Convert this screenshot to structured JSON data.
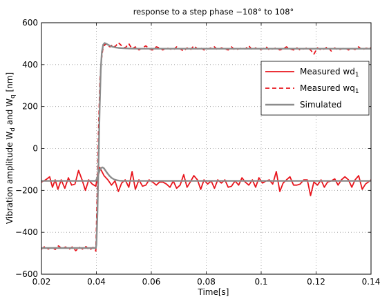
{
  "chart_data": {
    "type": "line",
    "title": "response to a step phase −108° to 108°",
    "xlabel": "Time[s]",
    "ylabel_parts": [
      "Vibration amplitude W",
      "d",
      " and W",
      "q",
      " [nm]"
    ],
    "xlim": [
      0.02,
      0.14
    ],
    "ylim": [
      -600,
      600
    ],
    "x_ticks": [
      0.02,
      0.04,
      0.06,
      0.08,
      0.1,
      0.12,
      0.14
    ],
    "x_tick_labels": [
      "0.02",
      "0.04",
      "0.06",
      "0.08",
      "0.1",
      "0.12",
      "0.14"
    ],
    "y_ticks": [
      -600,
      -400,
      -200,
      0,
      200,
      400,
      600
    ],
    "y_tick_labels": [
      "−600",
      "−400",
      "−200",
      "0",
      "200",
      "400",
      "600"
    ],
    "grid": true,
    "legend_position": "right",
    "series": [
      {
        "name_main": "Measured wd",
        "name_sub": "1",
        "color": "#e8141c",
        "style": "solid",
        "x": [
          0.02,
          0.0215,
          0.023,
          0.024,
          0.025,
          0.026,
          0.0272,
          0.0285,
          0.0298,
          0.031,
          0.0322,
          0.0335,
          0.0348,
          0.036,
          0.0372,
          0.0385,
          0.0398,
          0.0405,
          0.0412,
          0.0418,
          0.0428,
          0.0442,
          0.0455,
          0.0468,
          0.048,
          0.0492,
          0.0505,
          0.0518,
          0.053,
          0.0542,
          0.0555,
          0.0568,
          0.058,
          0.0592,
          0.0605,
          0.0618,
          0.063,
          0.0642,
          0.0655,
          0.0668,
          0.068,
          0.0692,
          0.0705,
          0.0718,
          0.073,
          0.0742,
          0.0755,
          0.0768,
          0.078,
          0.0792,
          0.0805,
          0.0818,
          0.083,
          0.0842,
          0.0855,
          0.0868,
          0.088,
          0.0892,
          0.0905,
          0.0918,
          0.093,
          0.0942,
          0.0955,
          0.0968,
          0.098,
          0.0992,
          0.1005,
          0.1018,
          0.103,
          0.1042,
          0.1055,
          0.1068,
          0.108,
          0.1092,
          0.1105,
          0.1118,
          0.113,
          0.1142,
          0.1155,
          0.1168,
          0.118,
          0.1192,
          0.1205,
          0.1218,
          0.123,
          0.1242,
          0.1255,
          0.1268,
          0.128,
          0.1292,
          0.1305,
          0.1318,
          0.133,
          0.1342,
          0.1355,
          0.1368,
          0.138,
          0.14
        ],
        "y": [
          -160,
          -150,
          -135,
          -185,
          -150,
          -195,
          -150,
          -190,
          -140,
          -175,
          -170,
          -105,
          -150,
          -200,
          -150,
          -170,
          -180,
          -120,
          -90,
          -105,
          -130,
          -150,
          -175,
          -155,
          -205,
          -165,
          -150,
          -185,
          -110,
          -195,
          -150,
          -180,
          -175,
          -150,
          -160,
          -175,
          -160,
          -160,
          -170,
          -185,
          -155,
          -190,
          -175,
          -125,
          -185,
          -160,
          -130,
          -150,
          -195,
          -150,
          -170,
          -155,
          -190,
          -150,
          -165,
          -150,
          -185,
          -180,
          -155,
          -175,
          -140,
          -160,
          -175,
          -150,
          -185,
          -140,
          -165,
          -155,
          -150,
          -170,
          -110,
          -205,
          -165,
          -150,
          -135,
          -175,
          -175,
          -170,
          -150,
          -150,
          -225,
          -160,
          -175,
          -150,
          -185,
          -160,
          -155,
          -145,
          -175,
          -150,
          -135,
          -150,
          -185,
          -150,
          -130,
          -195,
          -170,
          -150
        ]
      },
      {
        "name_main": "Measured wq",
        "name_sub": "1",
        "color": "#e8141c",
        "style": "dashed",
        "x": [
          0.02,
          0.0212,
          0.0225,
          0.0238,
          0.025,
          0.0262,
          0.0275,
          0.0288,
          0.03,
          0.0312,
          0.0325,
          0.0338,
          0.035,
          0.0362,
          0.0375,
          0.0388,
          0.0398,
          0.0403,
          0.0408,
          0.0413,
          0.0418,
          0.0423,
          0.0428,
          0.0435,
          0.0442,
          0.045,
          0.0458,
          0.0468,
          0.048,
          0.0492,
          0.0505,
          0.0518,
          0.053,
          0.0542,
          0.0555,
          0.0568,
          0.058,
          0.0592,
          0.0605,
          0.0618,
          0.063,
          0.0642,
          0.0655,
          0.0668,
          0.068,
          0.0692,
          0.0705,
          0.0718,
          0.073,
          0.0742,
          0.0755,
          0.0768,
          0.078,
          0.0792,
          0.0805,
          0.0818,
          0.083,
          0.0842,
          0.0855,
          0.0868,
          0.088,
          0.0892,
          0.0905,
          0.0918,
          0.093,
          0.0942,
          0.0955,
          0.0968,
          0.098,
          0.0992,
          0.1005,
          0.1018,
          0.103,
          0.1042,
          0.1055,
          0.1068,
          0.108,
          0.1092,
          0.1105,
          0.1118,
          0.113,
          0.1142,
          0.1155,
          0.1168,
          0.118,
          0.1192,
          0.1205,
          0.1218,
          0.123,
          0.1242,
          0.1255,
          0.1268,
          0.128,
          0.1292,
          0.1305,
          0.1318,
          0.133,
          0.1342,
          0.1355,
          0.1368,
          0.138,
          0.14
        ],
        "y": [
          -480,
          -468,
          -480,
          -470,
          -482,
          -465,
          -478,
          -470,
          -482,
          -470,
          -488,
          -472,
          -480,
          -468,
          -485,
          -472,
          -490,
          -220,
          100,
          330,
          420,
          470,
          490,
          500,
          490,
          485,
          495,
          485,
          505,
          490,
          480,
          500,
          475,
          485,
          470,
          480,
          490,
          475,
          470,
          485,
          480,
          470,
          480,
          475,
          470,
          485,
          475,
          465,
          480,
          470,
          490,
          475,
          480,
          470,
          475,
          480,
          485,
          470,
          480,
          475,
          470,
          485,
          470,
          475,
          480,
          475,
          490,
          470,
          480,
          470,
          475,
          485,
          470,
          475,
          480,
          470,
          475,
          485,
          475,
          470,
          480,
          470,
          475,
          480,
          470,
          450,
          480,
          470,
          475,
          485,
          465,
          480,
          470,
          475,
          480,
          470,
          478,
          472,
          485,
          470,
          478,
          480
        ]
      },
      {
        "name_main": "Simulated",
        "name_sub": "",
        "color": "#8c8c8c",
        "style": "solid",
        "x": [
          0.02,
          0.0398,
          0.04,
          0.0404,
          0.0408,
          0.0412,
          0.0416,
          0.042,
          0.0425,
          0.043,
          0.0436,
          0.0442,
          0.045,
          0.046,
          0.047,
          0.048,
          0.049,
          0.05,
          0.052,
          0.055,
          0.06,
          0.065,
          0.07,
          0.14
        ],
        "y": [
          -475,
          -475,
          -460,
          -300,
          -50,
          200,
          380,
          460,
          495,
          503,
          500,
          495,
          490,
          485,
          482,
          480,
          479,
          478,
          477,
          476,
          476,
          476,
          476,
          476
        ]
      },
      {
        "name_main": "",
        "name_sub": "",
        "color": "#8c8c8c",
        "style": "solid",
        "x": [
          0.02,
          0.0398,
          0.0403,
          0.0408,
          0.0413,
          0.0418,
          0.0423,
          0.0428,
          0.0433,
          0.044,
          0.0447,
          0.0455,
          0.0465,
          0.0475,
          0.0485,
          0.0495,
          0.051,
          0.053,
          0.056,
          0.06,
          0.07,
          0.14
        ],
        "y": [
          -155,
          -155,
          -140,
          -120,
          -102,
          -92,
          -90,
          -95,
          -105,
          -118,
          -130,
          -140,
          -148,
          -152,
          -154,
          -155,
          -155,
          -155,
          -155,
          -155,
          -155,
          -155
        ]
      }
    ]
  }
}
